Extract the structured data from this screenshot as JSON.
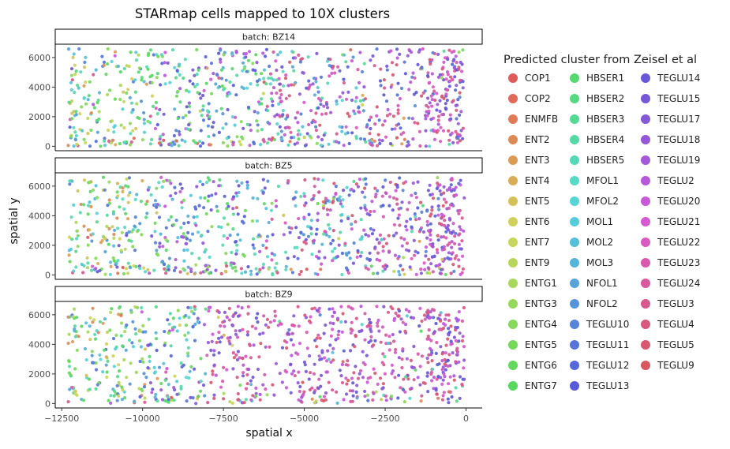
{
  "chart_data": {
    "type": "scatter",
    "title": "STARmap cells mapped to 10X clusters",
    "xlabel": "spatial x",
    "ylabel": "spatial y",
    "xlim": [
      -12700,
      500
    ],
    "ylim": [
      -300,
      6900
    ],
    "x_ticks": [
      -12500,
      -10000,
      -7500,
      -5000,
      -2500,
      0
    ],
    "x_tick_labels": [
      "−12500",
      "−10000",
      "−7500",
      "−5000",
      "−2500",
      "0"
    ],
    "y_ticks": [
      0,
      2000,
      4000,
      6000
    ],
    "y_tick_labels": [
      "0",
      "2000",
      "4000",
      "6000"
    ],
    "grid": false,
    "legend_placement": "right",
    "legend_title": "Predicted cluster from Zeisel et al",
    "panels": [
      {
        "label": "batch: BZ14",
        "seed": 14
      },
      {
        "label": "batch: BZ5",
        "seed": 5
      },
      {
        "label": "batch: BZ9",
        "seed": 9
      }
    ],
    "points_per_panel": 900,
    "categories": [
      {
        "name": "COP1",
        "color": "#e05a5a"
      },
      {
        "name": "COP2",
        "color": "#e0695a"
      },
      {
        "name": "ENMFB",
        "color": "#e07a57"
      },
      {
        "name": "ENT2",
        "color": "#de8a55"
      },
      {
        "name": "ENT3",
        "color": "#dc9b55"
      },
      {
        "name": "ENT4",
        "color": "#d9ad56"
      },
      {
        "name": "ENT5",
        "color": "#d6c158"
      },
      {
        "name": "ENT6",
        "color": "#d1d05a"
      },
      {
        "name": "ENT7",
        "color": "#c7d65a"
      },
      {
        "name": "ENT9",
        "color": "#b8d65a"
      },
      {
        "name": "ENTG1",
        "color": "#a8d95a"
      },
      {
        "name": "ENTG3",
        "color": "#96d95a"
      },
      {
        "name": "ENTG4",
        "color": "#86d95a"
      },
      {
        "name": "ENTG5",
        "color": "#74d95a"
      },
      {
        "name": "ENTG6",
        "color": "#62d95a"
      },
      {
        "name": "ENTG7",
        "color": "#56d95e"
      },
      {
        "name": "HBSER1",
        "color": "#56d970"
      },
      {
        "name": "HBSER2",
        "color": "#56d982"
      },
      {
        "name": "HBSER3",
        "color": "#56d994"
      },
      {
        "name": "HBSER4",
        "color": "#56d9a6"
      },
      {
        "name": "HBSER5",
        "color": "#56d9b6"
      },
      {
        "name": "MFOL1",
        "color": "#56d9c6"
      },
      {
        "name": "MFOL2",
        "color": "#56d5d6"
      },
      {
        "name": "MOL1",
        "color": "#56cbd9"
      },
      {
        "name": "MOL2",
        "color": "#56c0d9"
      },
      {
        "name": "MOL3",
        "color": "#56b3d9"
      },
      {
        "name": "NFOL1",
        "color": "#56a4d9"
      },
      {
        "name": "NFOL2",
        "color": "#5694d9"
      },
      {
        "name": "TEGLU10",
        "color": "#5684d9"
      },
      {
        "name": "TEGLU11",
        "color": "#5675d9"
      },
      {
        "name": "TEGLU12",
        "color": "#5667d9"
      },
      {
        "name": "TEGLU13",
        "color": "#585ad9"
      },
      {
        "name": "TEGLU14",
        "color": "#6658d9"
      },
      {
        "name": "TEGLU15",
        "color": "#7458d9"
      },
      {
        "name": "TEGLU17",
        "color": "#8458d9"
      },
      {
        "name": "TEGLU18",
        "color": "#9458d9"
      },
      {
        "name": "TEGLU19",
        "color": "#a558d9"
      },
      {
        "name": "TEGLU2",
        "color": "#b658d9"
      },
      {
        "name": "TEGLU20",
        "color": "#c858d9"
      },
      {
        "name": "TEGLU21",
        "color": "#d658d2"
      },
      {
        "name": "TEGLU22",
        "color": "#d958c2"
      },
      {
        "name": "TEGLU23",
        "color": "#d958b0"
      },
      {
        "name": "TEGLU24",
        "color": "#d958a0"
      },
      {
        "name": "TEGLU3",
        "color": "#d95890"
      },
      {
        "name": "TEGLU4",
        "color": "#d95880"
      },
      {
        "name": "TEGLU5",
        "color": "#d9586e"
      },
      {
        "name": "TEGLU9",
        "color": "#d9585e"
      }
    ]
  }
}
